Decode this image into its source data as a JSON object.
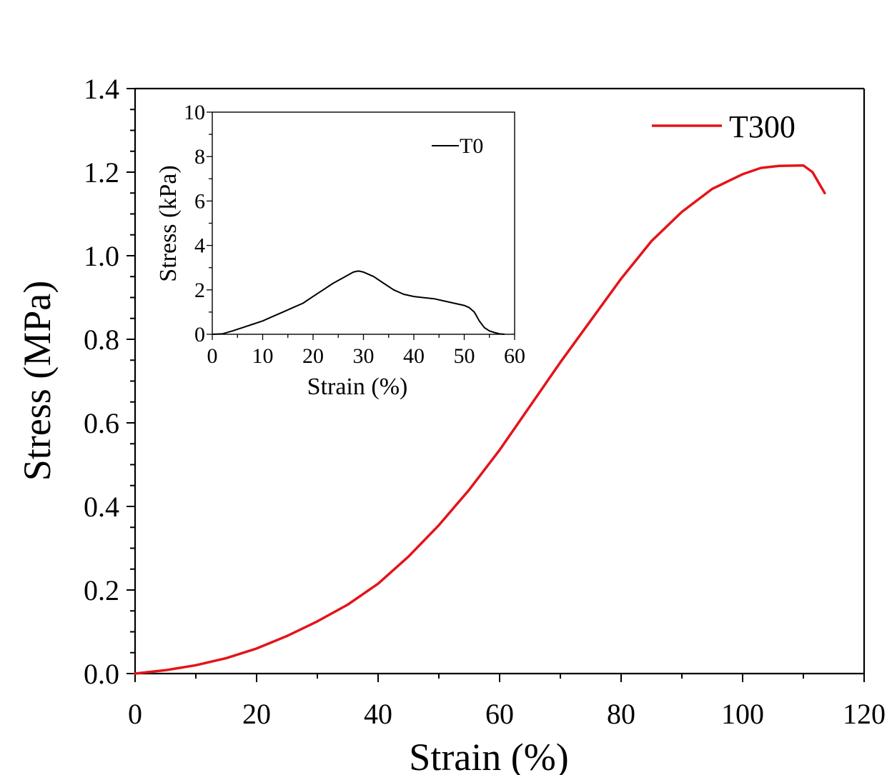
{
  "chart_data": [
    {
      "type": "line",
      "xlabel": "Strain (%)",
      "ylabel": "Stress (MPa)",
      "xlim": [
        0,
        120
      ],
      "ylim": [
        0,
        1.4
      ],
      "xticks": [
        "0",
        "20",
        "40",
        "60",
        "80",
        "100",
        "120"
      ],
      "yticks": [
        "0.0",
        "0.2",
        "0.4",
        "0.6",
        "0.8",
        "1.0",
        "1.2",
        "1.4"
      ],
      "legend_position": "top-right",
      "series": [
        {
          "name": "T300",
          "color": "#e3141a",
          "x": [
            0,
            5,
            10,
            15,
            20,
            25,
            30,
            35,
            40,
            45,
            50,
            55,
            60,
            65,
            70,
            75,
            80,
            85,
            90,
            95,
            100,
            103,
            106,
            110,
            111.5,
            113.5
          ],
          "y": [
            0,
            0.008,
            0.02,
            0.037,
            0.06,
            0.09,
            0.125,
            0.165,
            0.215,
            0.28,
            0.355,
            0.44,
            0.535,
            0.64,
            0.745,
            0.845,
            0.945,
            1.035,
            1.105,
            1.16,
            1.195,
            1.21,
            1.215,
            1.216,
            1.2,
            1.15
          ]
        }
      ]
    },
    {
      "type": "line",
      "xlabel": "Strain (%)",
      "ylabel": "Stress (kPa)",
      "xlim": [
        0,
        60
      ],
      "ylim": [
        0,
        10
      ],
      "xticks": [
        "0",
        "10",
        "20",
        "30",
        "40",
        "50",
        "60"
      ],
      "yticks": [
        "0",
        "2",
        "4",
        "6",
        "8",
        "10"
      ],
      "legend_position": "top-right",
      "series": [
        {
          "name": "T0",
          "color": "#000000",
          "x": [
            0,
            2,
            4,
            6,
            8,
            10,
            12,
            14,
            16,
            18,
            20,
            22,
            24,
            26,
            28,
            29,
            30,
            32,
            34,
            36,
            38,
            40,
            42,
            44,
            46,
            48,
            50,
            51,
            52,
            53,
            54,
            55,
            56,
            57,
            58
          ],
          "y": [
            0,
            0.02,
            0.15,
            0.3,
            0.45,
            0.6,
            0.8,
            1.0,
            1.2,
            1.4,
            1.7,
            2.0,
            2.3,
            2.55,
            2.8,
            2.85,
            2.8,
            2.6,
            2.3,
            2.0,
            1.8,
            1.7,
            1.65,
            1.6,
            1.5,
            1.4,
            1.3,
            1.2,
            1.0,
            0.6,
            0.3,
            0.15,
            0.08,
            0.02,
            0
          ]
        }
      ]
    }
  ]
}
